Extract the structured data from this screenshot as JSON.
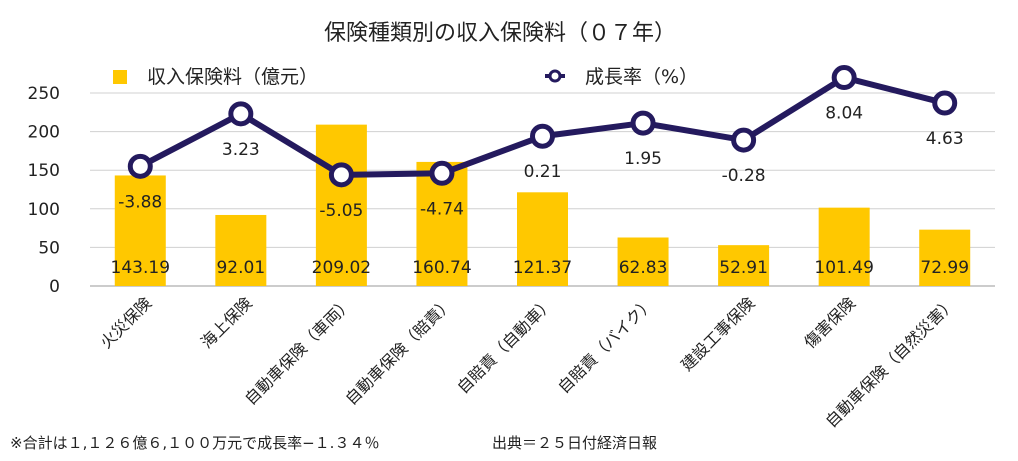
{
  "chart_data": {
    "type": "bar",
    "title": "保険種類別の収入保険料（０７年）",
    "categories": [
      "火災保険",
      "海上保険",
      "自動車保険（車両）",
      "自動車保険（賠責）",
      "自賠責（自動車）",
      "自賠責（バイク）",
      "建設工事保険",
      "傷害保険",
      "自動車保険（自然災害）"
    ],
    "series": [
      {
        "name": "収入保険料（億元）",
        "kind": "bar",
        "color": "#FFC800",
        "values": [
          143.19,
          92.01,
          209.02,
          160.74,
          121.37,
          62.83,
          52.91,
          101.49,
          72.99
        ],
        "labels": [
          "143.19",
          "92.01",
          "209.02",
          "160.74",
          "121.37",
          "62.83",
          "52.91",
          "101.49",
          "72.99"
        ]
      },
      {
        "name": "成長率（%）",
        "kind": "line",
        "color": "#241A5E",
        "positions": [
          155,
          223,
          144,
          146,
          194,
          211,
          189,
          270,
          237
        ],
        "labels": [
          "-3.88",
          "3.23",
          "-5.05",
          "-4.74",
          "0.21",
          "1.95",
          "-0.28",
          "8.04",
          "4.63"
        ]
      }
    ],
    "yticks": [
      "0",
      "50",
      "100",
      "150",
      "200",
      "250"
    ],
    "ylim": [
      0,
      250
    ],
    "grid": true,
    "legend_position": "top"
  },
  "footnote": "※合計は１,１２６億６,１００万元で成長率−１.３４％",
  "source": "出典＝２５日付経済日報"
}
